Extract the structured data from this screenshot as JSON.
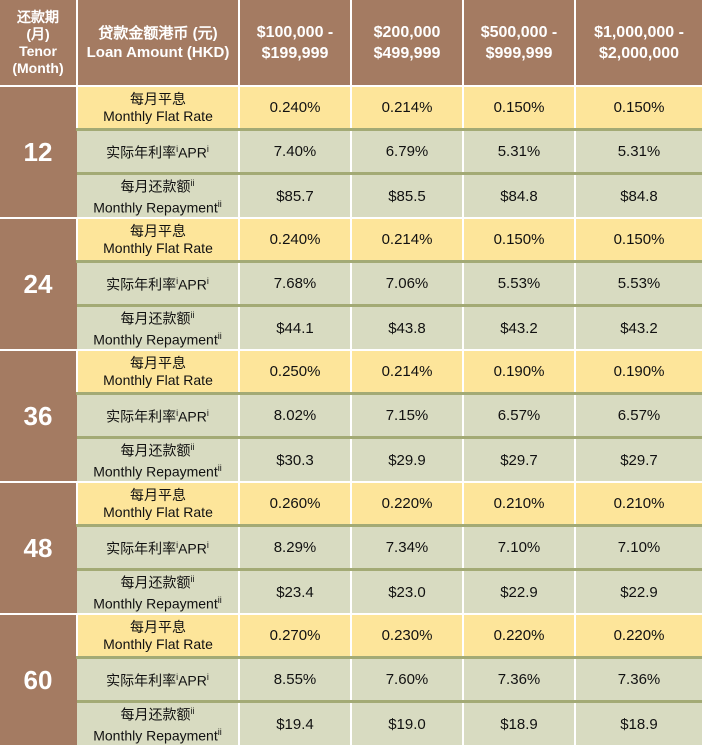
{
  "header": {
    "tenor_zh": "还款期",
    "tenor_zh2": "(月)",
    "tenor_en": "Tenor",
    "tenor_en2": "(Month)",
    "loan_zh": "贷款金额港币 (元)",
    "loan_en": "Loan Amount (HKD)",
    "amounts": [
      {
        "from": "$100,000 -",
        "to": "$199,999"
      },
      {
        "from": "$200,000",
        "to": "$499,999"
      },
      {
        "from": "$500,000 -",
        "to": "$999,999"
      },
      {
        "from": "$1,000,000 -",
        "to": "$2,000,000"
      }
    ]
  },
  "labels": {
    "flat_zh": "每月平息",
    "flat_en": "Monthly Flat Rate",
    "apr_zh": "实际年利率",
    "apr_sup1": "i",
    "apr_en": "APR",
    "apr_sup2": "i",
    "rep_zh": "每月还款额",
    "rep_sup": "ii",
    "rep_en": "Monthly Repayment",
    "rep_sup2": "ii"
  },
  "groups": [
    {
      "tenor": "12",
      "flat": [
        "0.240%",
        "0.214%",
        "0.150%",
        "0.150%"
      ],
      "apr": [
        "7.40%",
        "6.79%",
        "5.31%",
        "5.31%"
      ],
      "rep": [
        "$85.7",
        "$85.5",
        "$84.8",
        "$84.8"
      ]
    },
    {
      "tenor": "24",
      "flat": [
        "0.240%",
        "0.214%",
        "0.150%",
        "0.150%"
      ],
      "apr": [
        "7.68%",
        "7.06%",
        "5.53%",
        "5.53%"
      ],
      "rep": [
        "$44.1",
        "$43.8",
        "$43.2",
        "$43.2"
      ]
    },
    {
      "tenor": "36",
      "flat": [
        "0.250%",
        "0.214%",
        "0.190%",
        "0.190%"
      ],
      "apr": [
        "8.02%",
        "7.15%",
        "6.57%",
        "6.57%"
      ],
      "rep": [
        "$30.3",
        "$29.9",
        "$29.7",
        "$29.7"
      ]
    },
    {
      "tenor": "48",
      "flat": [
        "0.260%",
        "0.220%",
        "0.210%",
        "0.210%"
      ],
      "apr": [
        "8.29%",
        "7.34%",
        "7.10%",
        "7.10%"
      ],
      "rep": [
        "$23.4",
        "$23.0",
        "$22.9",
        "$22.9"
      ]
    },
    {
      "tenor": "60",
      "flat": [
        "0.270%",
        "0.230%",
        "0.220%",
        "0.220%"
      ],
      "apr": [
        "8.55%",
        "7.60%",
        "7.36%",
        "7.36%"
      ],
      "rep": [
        "$19.4",
        "$19.0",
        "$18.9",
        "$18.9"
      ]
    }
  ]
}
